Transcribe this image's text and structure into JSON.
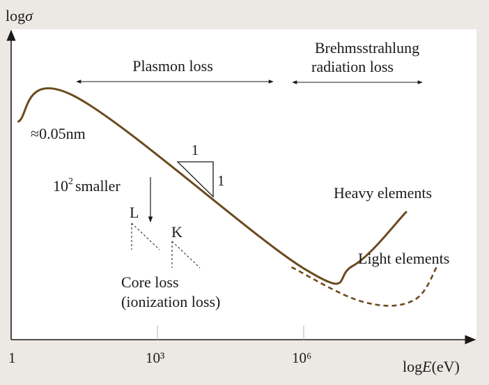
{
  "colors": {
    "background": "#ece9e4",
    "plot_area": "#ffffff",
    "curve": "#6b4a1e",
    "axis": "#1a1a1a",
    "annotation": "#1a1a1a"
  },
  "chart_data": {
    "type": "line",
    "title": "",
    "xlabel": "logE(eV)",
    "ylabel": "logσ",
    "x_scale": "log",
    "x_ticks": [
      {
        "value": 0,
        "label": "1"
      },
      {
        "value": 3,
        "label": "10³"
      },
      {
        "value": 6,
        "label": "10⁶"
      }
    ],
    "xlim": [
      0,
      9.5
    ],
    "ylim": [
      0,
      10
    ],
    "series": [
      {
        "name": "Heavy elements",
        "style": "solid",
        "x": [
          0.15,
          1.3,
          6.0,
          7.0,
          8.1
        ],
        "y": [
          8.9,
          10.0,
          2.5,
          2.6,
          4.95
        ]
      },
      {
        "name": "Light elements",
        "style": "dashed",
        "x": [
          5.75,
          7.2,
          8.25,
          8.75
        ],
        "y": [
          2.55,
          1.05,
          1.1,
          2.65
        ]
      }
    ],
    "annotations": {
      "plasmon_loss": "Plasmon loss",
      "brems_line1": "Brehmsstrahlung",
      "brems_line2": "radiation loss",
      "wavelength": "≈0.05nm",
      "smaller_base": "10",
      "smaller_exp": "2",
      "smaller_text": "smaller",
      "slope_top": "1",
      "slope_right": "1",
      "edge_L": "L",
      "edge_K": "K",
      "core_loss_line1": "Core loss",
      "core_loss_line2": "(ionization loss)",
      "heavy_label": "Heavy elements",
      "light_label": "Light elements"
    },
    "axis_text": {
      "y_log": "log",
      "y_sym": "σ",
      "x_log": "log",
      "x_sym": "E",
      "x_unit": "(eV)"
    }
  }
}
